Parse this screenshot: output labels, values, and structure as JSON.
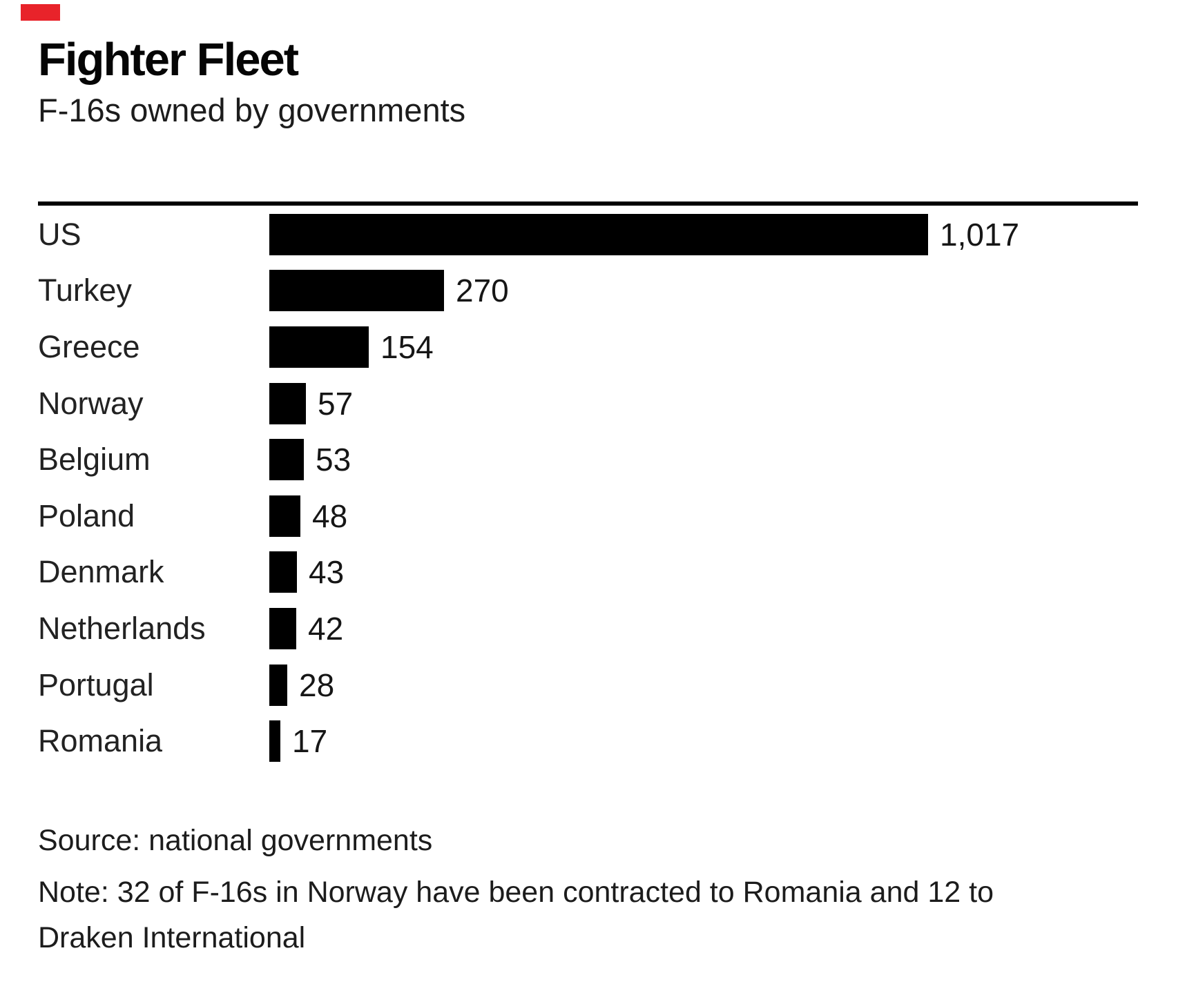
{
  "chart_data": {
    "type": "bar",
    "orientation": "horizontal",
    "title": "Fighter Fleet",
    "subtitle": "F-16s owned by governments",
    "categories": [
      "US",
      "Turkey",
      "Greece",
      "Norway",
      "Belgium",
      "Poland",
      "Denmark",
      "Netherlands",
      "Portugal",
      "Romania"
    ],
    "values": [
      1017,
      270,
      154,
      57,
      53,
      48,
      43,
      42,
      28,
      17
    ],
    "value_labels": [
      "1,017",
      "270",
      "154",
      "57",
      "53",
      "48",
      "43",
      "42",
      "28",
      "17"
    ],
    "max_value": 1017,
    "xlim": [
      0,
      1017
    ],
    "grid": false,
    "legend": false,
    "bar_color": "#000000",
    "source": "Source: national governments",
    "note": "Note: 32 of F-16s in Norway have been contracted to Romania and 12 to Draken International"
  },
  "decorations": {
    "top_left_marker_color": "#e8232a"
  }
}
